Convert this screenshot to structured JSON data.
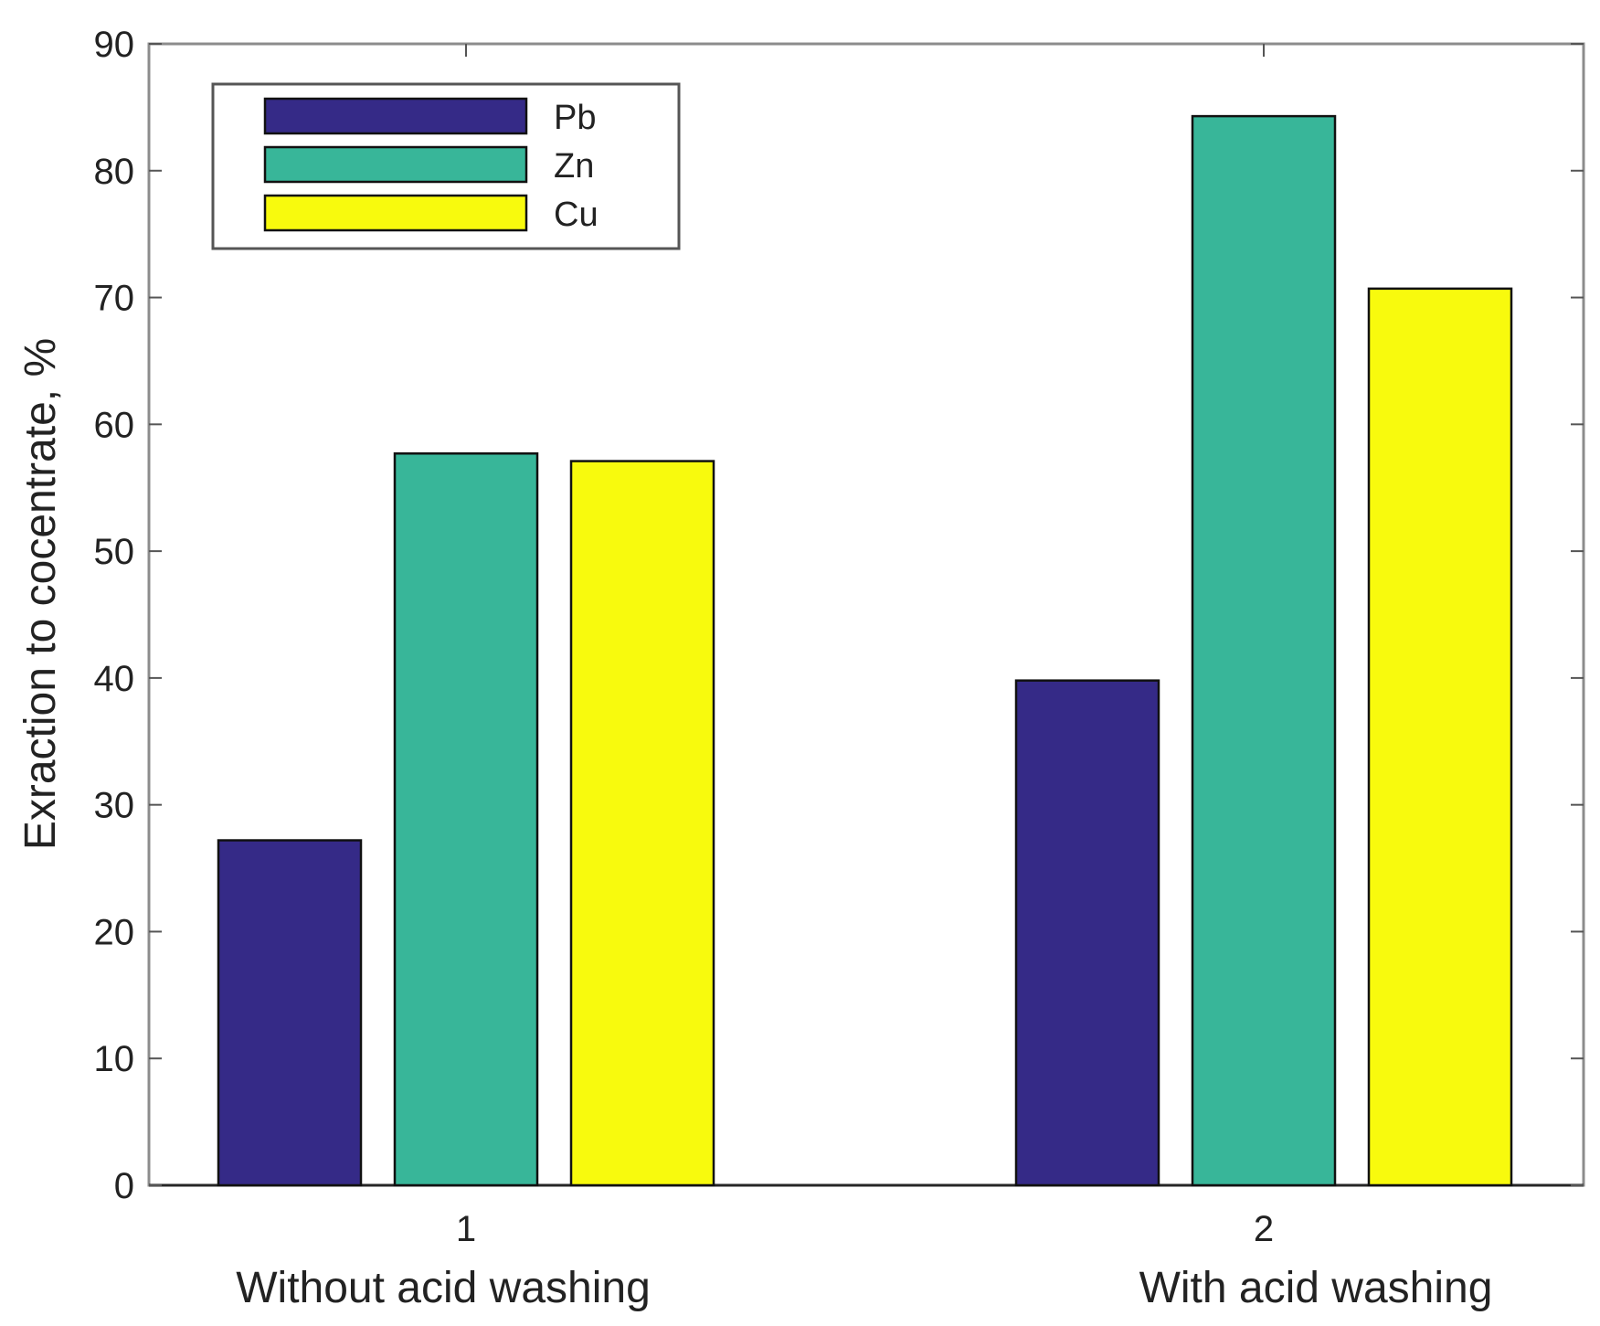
{
  "chart_data": {
    "type": "bar",
    "title": "",
    "xlabel": "",
    "ylabel": "Exraction to cocentrate, %",
    "ylim": [
      0,
      90
    ],
    "yticks": [
      0,
      10,
      20,
      30,
      40,
      50,
      60,
      70,
      80,
      90
    ],
    "grid": false,
    "legend_position": "top-left",
    "categories": [
      {
        "tick": "1",
        "label": "Without acid washing"
      },
      {
        "tick": "2",
        "label": "With acid washing"
      }
    ],
    "series": [
      {
        "name": "Pb",
        "color": "#352a87",
        "values": [
          27.2,
          39.8
        ]
      },
      {
        "name": "Zn",
        "color": "#38b699",
        "values": [
          57.7,
          84.3
        ]
      },
      {
        "name": "Cu",
        "color": "#f8fa0d",
        "values": [
          57.1,
          70.7
        ]
      }
    ]
  }
}
